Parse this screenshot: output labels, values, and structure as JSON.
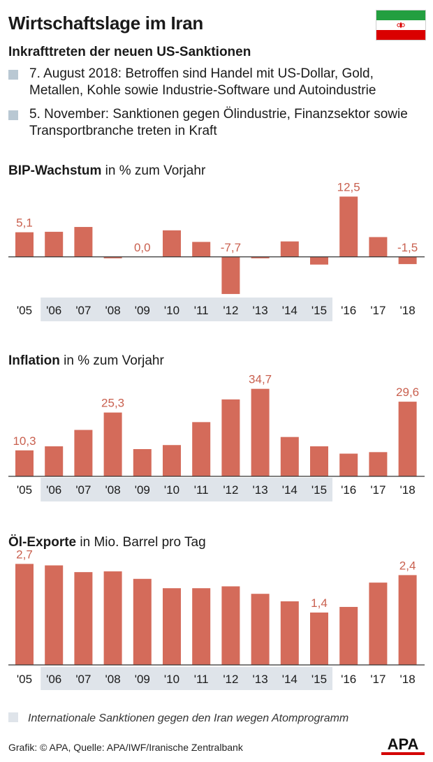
{
  "header": {
    "title": "Wirtschaftslage im Iran",
    "subtitle": "Inkrafttreten der neuen US-Sanktionen",
    "notes": [
      "7. August 2018: Betroffen sind Handel mit US-Dollar, Gold, Metallen, Kohle sowie Industrie-Software und Autoindustrie",
      "5. November:  Sanktionen gegen Ölindustrie, Finanzsektor sowie Transportbranche treten in Kraft"
    ]
  },
  "colors": {
    "bar": "#d46b5a",
    "label": "#c9604f",
    "highlight": "#dfe4ea",
    "note_square": "#b9c8d3",
    "flag_green": "#239f40",
    "flag_white": "#ffffff",
    "flag_red": "#da0000"
  },
  "highlight_label": "Internationale Sanktionen gegen den Iran wegen Atomprogramm",
  "highlight_range": [
    "'06",
    "'15"
  ],
  "credit": "Grafik: © APA, Quelle: APA/IWF/Iranische Zentralbank",
  "logo_text": "APA",
  "chart_data": [
    {
      "type": "bar",
      "title": "BIP-Wachstum",
      "unit_label": "in % zum Vorjahr",
      "categories": [
        "'05",
        "'06",
        "'07",
        "'08",
        "'09",
        "'10",
        "'11",
        "'12",
        "'13",
        "'14",
        "'15",
        "'16",
        "'17",
        "'18"
      ],
      "values": [
        5.1,
        5.2,
        6.2,
        -0.3,
        0.0,
        5.5,
        3.1,
        -7.7,
        -0.3,
        3.2,
        -1.6,
        12.5,
        4.1,
        -1.5
      ],
      "labels": {
        "0": "5,1",
        "4": "0,0",
        "7": "-7,7",
        "11": "12,5",
        "13": "-1,5"
      },
      "ylim": [
        -8,
        13
      ]
    },
    {
      "type": "bar",
      "title": "Inflation",
      "unit_label": "in % zum Vorjahr",
      "categories": [
        "'05",
        "'06",
        "'07",
        "'08",
        "'09",
        "'10",
        "'11",
        "'12",
        "'13",
        "'14",
        "'15",
        "'16",
        "'17",
        "'18"
      ],
      "values": [
        10.3,
        11.9,
        18.4,
        25.3,
        10.8,
        12.4,
        21.5,
        30.5,
        34.7,
        15.6,
        11.9,
        9.0,
        9.6,
        29.6
      ],
      "labels": {
        "0": "10,3",
        "3": "25,3",
        "8": "34,7",
        "13": "29,6"
      },
      "ylim": [
        0,
        36
      ]
    },
    {
      "type": "bar",
      "title": "Öl-Exporte",
      "unit_label": "in Mio. Barrel pro Tag",
      "categories": [
        "'05",
        "'06",
        "'07",
        "'08",
        "'09",
        "'10",
        "'11",
        "'12",
        "'13",
        "'14",
        "'15",
        "'16",
        "'17",
        "'18"
      ],
      "values": [
        2.7,
        2.66,
        2.48,
        2.5,
        2.3,
        2.05,
        2.05,
        2.1,
        1.9,
        1.7,
        1.4,
        1.55,
        2.2,
        2.4
      ],
      "labels": {
        "0": "2,7",
        "10": "1,4",
        "13": "2,4"
      },
      "ylim": [
        0,
        2.8
      ]
    }
  ]
}
